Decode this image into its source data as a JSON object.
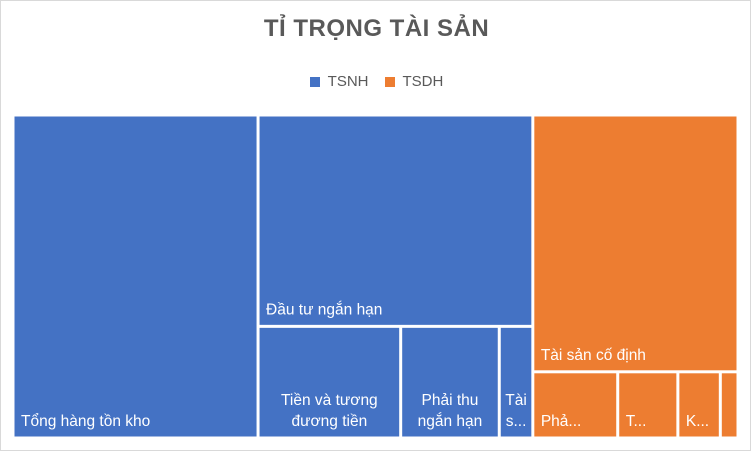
{
  "chart_data": {
    "type": "treemap",
    "title": "TỈ TRỌNG TÀI SẢN",
    "legend_position": "top",
    "series": [
      {
        "name": "TSNH",
        "color": "#4472C4",
        "items": [
          {
            "label": "Tổng hàng tồn kho",
            "value": 33.8
          },
          {
            "label": "Đầu tư ngắn hạn",
            "value": 24.8
          },
          {
            "label": "Tiền và tương đương tiền",
            "value": 6.8
          },
          {
            "label": "Phải thu ngắn hạn",
            "value": 4.7
          },
          {
            "label": "Tài s...",
            "value": 1.6
          }
        ]
      },
      {
        "name": "TSDH",
        "color": "#ED7D31",
        "items": [
          {
            "label": "Tài sản cố định",
            "value": 22.5
          },
          {
            "label": "Phả...",
            "value": 2.4
          },
          {
            "label": "T...",
            "value": 1.7
          },
          {
            "label": "K...",
            "value": 1.2
          },
          {
            "label": "",
            "value": 0.5
          }
        ]
      }
    ]
  }
}
